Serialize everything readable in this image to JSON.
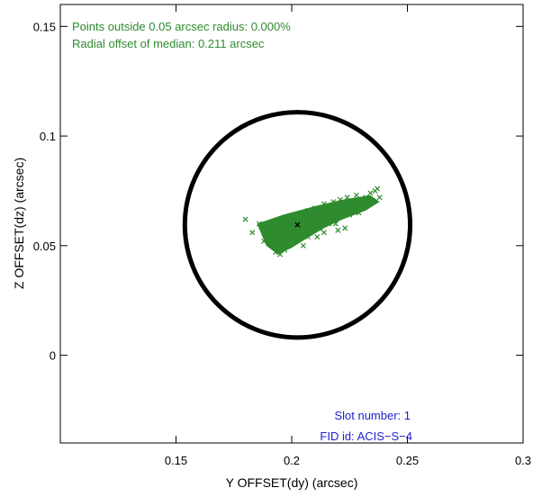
{
  "chart_data": {
    "type": "scatter",
    "xlabel": "Y OFFSET(dy) (arcsec)",
    "ylabel": "Z OFFSET(dz) (arcsec)",
    "xlim": [
      0.1,
      0.3
    ],
    "ylim": [
      -0.04,
      0.16
    ],
    "x_ticks": [
      {
        "value": 0.15,
        "label": "0.15"
      },
      {
        "value": 0.2,
        "label": "0.2"
      },
      {
        "value": 0.25,
        "label": "0.25"
      },
      {
        "value": 0.3,
        "label": "0.3"
      }
    ],
    "y_ticks": [
      {
        "value": 0,
        "label": "0"
      },
      {
        "value": 0.05,
        "label": "0.05"
      },
      {
        "value": 0.1,
        "label": "0.1"
      },
      {
        "value": 0.15,
        "label": "0.15"
      }
    ],
    "annotations": {
      "outside": "Points outside 0.05 arcsec radius: 0.000%",
      "median_offset": "Radial offset of median: 0.211 arcsec",
      "slot": "Slot number: 1",
      "fid": "FID id: ACIS−S−4"
    },
    "circle": {
      "center": [
        0.2025,
        0.0595
      ],
      "radius": 0.05
    },
    "median": [
      0.2025,
      0.0595
    ],
    "series": [
      {
        "marker": "x",
        "color": "#2e8b2e",
        "points": [
          [
            0.18,
            0.062
          ],
          [
            0.183,
            0.056
          ],
          [
            0.186,
            0.06
          ],
          [
            0.189,
            0.056
          ],
          [
            0.19,
            0.052
          ],
          [
            0.192,
            0.06
          ],
          [
            0.193,
            0.047
          ],
          [
            0.194,
            0.055
          ],
          [
            0.195,
            0.062
          ],
          [
            0.196,
            0.049
          ],
          [
            0.197,
            0.058
          ],
          [
            0.198,
            0.052
          ],
          [
            0.199,
            0.056
          ],
          [
            0.2,
            0.062
          ],
          [
            0.201,
            0.057
          ],
          [
            0.202,
            0.053
          ],
          [
            0.203,
            0.06
          ],
          [
            0.204,
            0.055
          ],
          [
            0.205,
            0.063
          ],
          [
            0.206,
            0.058
          ],
          [
            0.207,
            0.066
          ],
          [
            0.208,
            0.056
          ],
          [
            0.209,
            0.061
          ],
          [
            0.21,
            0.067
          ],
          [
            0.211,
            0.062
          ],
          [
            0.212,
            0.058
          ],
          [
            0.213,
            0.065
          ],
          [
            0.214,
            0.069
          ],
          [
            0.215,
            0.064
          ],
          [
            0.216,
            0.06
          ],
          [
            0.217,
            0.067
          ],
          [
            0.218,
            0.07
          ],
          [
            0.219,
            0.065
          ],
          [
            0.22,
            0.068
          ],
          [
            0.221,
            0.071
          ],
          [
            0.222,
            0.066
          ],
          [
            0.223,
            0.069
          ],
          [
            0.224,
            0.072
          ],
          [
            0.225,
            0.068
          ],
          [
            0.226,
            0.07
          ],
          [
            0.227,
            0.067
          ],
          [
            0.228,
            0.073
          ],
          [
            0.229,
            0.069
          ],
          [
            0.23,
            0.071
          ],
          [
            0.231,
            0.068
          ],
          [
            0.232,
            0.072
          ],
          [
            0.233,
            0.07
          ],
          [
            0.234,
            0.074
          ],
          [
            0.235,
            0.07
          ],
          [
            0.236,
            0.075
          ],
          [
            0.237,
            0.076
          ],
          [
            0.238,
            0.072
          ],
          [
            0.196,
            0.055
          ],
          [
            0.198,
            0.05
          ],
          [
            0.203,
            0.058
          ],
          [
            0.206,
            0.061
          ],
          [
            0.208,
            0.064
          ],
          [
            0.21,
            0.059
          ],
          [
            0.212,
            0.063
          ],
          [
            0.215,
            0.066
          ],
          [
            0.218,
            0.063
          ],
          [
            0.221,
            0.067
          ],
          [
            0.213,
            0.06
          ],
          [
            0.22,
            0.057
          ],
          [
            0.219,
            0.06
          ],
          [
            0.223,
            0.058
          ],
          [
            0.225,
            0.064
          ],
          [
            0.205,
            0.05
          ],
          [
            0.201,
            0.064
          ],
          [
            0.207,
            0.054
          ],
          [
            0.214,
            0.056
          ],
          [
            0.211,
            0.054
          ],
          [
            0.226,
            0.066
          ],
          [
            0.229,
            0.065
          ],
          [
            0.191,
            0.057
          ],
          [
            0.194,
            0.059
          ],
          [
            0.197,
            0.048
          ],
          [
            0.188,
            0.052
          ],
          [
            0.195,
            0.046
          ]
        ]
      }
    ]
  }
}
